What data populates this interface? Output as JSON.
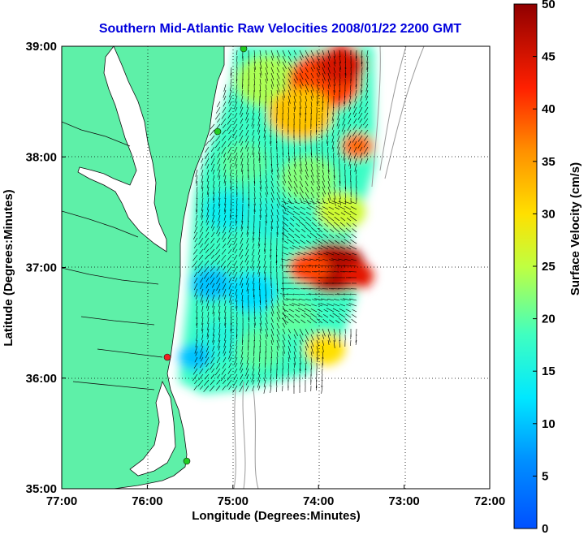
{
  "title": "Southern Mid-Atlantic Raw Velocities 2008/01/22 2200 GMT",
  "x_axis": {
    "label": "Longitude (Degrees:Minutes)",
    "ticks": [
      "77:00",
      "76:00",
      "75:00",
      "74:00",
      "73:00",
      "72:00"
    ]
  },
  "y_axis": {
    "label": "Latitude (Degrees:Minutes)",
    "ticks": [
      "39:00",
      "38:00",
      "37:00",
      "36:00",
      "35:00"
    ]
  },
  "colorbar": {
    "label": "Surface Velocity (cm/s)",
    "ticks": [
      "50",
      "45",
      "40",
      "35",
      "30",
      "25",
      "20",
      "15",
      "10",
      "5",
      "0"
    ],
    "min": 0,
    "max": 50,
    "colormap": "jet"
  },
  "map": {
    "lon_range": [
      -77,
      -72
    ],
    "lat_range": [
      35,
      39
    ],
    "grid": "dotted",
    "land_color": "#5ef0a8",
    "water_color": "#ffffff",
    "station_colors": {
      "active": "#22cc22",
      "inactive": "#ee2222"
    },
    "bathymetry_color": "#999999",
    "arrow_color": "#000000"
  }
}
